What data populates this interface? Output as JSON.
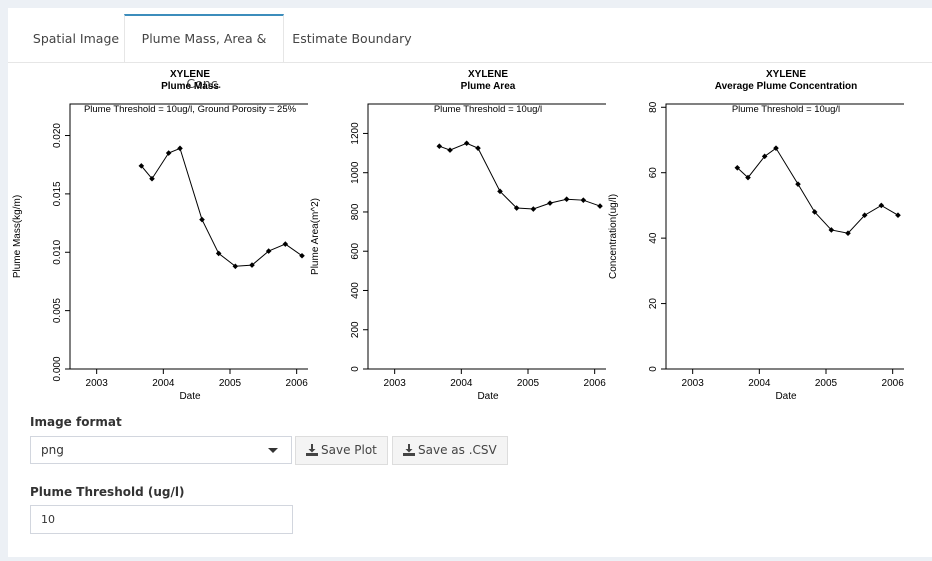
{
  "tabs": [
    {
      "label": "Spatial Image",
      "active": false
    },
    {
      "label": "Plume Mass, Area & Conc.",
      "active": true
    },
    {
      "label": "Estimate Boundary",
      "active": false
    }
  ],
  "accent_color": "#3c8dbc",
  "chart_data": [
    {
      "type": "line",
      "title": "XYLENE",
      "subtitle": "Plume Mass",
      "annotation": "Plume Threshold = 10ug/l, Ground Porosity = 25%",
      "xlabel": "Date",
      "ylabel": "Plume Mass(kg/m)",
      "xticks": [
        "2003",
        "2004",
        "2005",
        "2006"
      ],
      "yticks": [
        "0.000",
        "0.005",
        "0.010",
        "0.015",
        "0.020"
      ],
      "xlim": [
        2002.6,
        2006.2
      ],
      "ylim": [
        0,
        0.0227
      ],
      "x": [
        2003.67,
        2003.83,
        2004.08,
        2004.25,
        2004.58,
        2004.83,
        2005.08,
        2005.33,
        2005.58,
        2005.83,
        2006.08
      ],
      "y": [
        0.0174,
        0.0163,
        0.0185,
        0.0189,
        0.0128,
        0.0099,
        0.0088,
        0.0089,
        0.0101,
        0.0107,
        0.0097
      ]
    },
    {
      "type": "line",
      "title": "XYLENE",
      "subtitle": "Plume Area",
      "annotation": "Plume Threshold = 10ug/l",
      "xlabel": "Date",
      "ylabel": "Plume Area(m^2)",
      "xticks": [
        "2003",
        "2004",
        "2005",
        "2006"
      ],
      "yticks": [
        "0",
        "200",
        "400",
        "600",
        "800",
        "1000",
        "1200"
      ],
      "xlim": [
        2002.6,
        2006.2
      ],
      "ylim": [
        0,
        1350
      ],
      "x": [
        2003.67,
        2003.83,
        2004.08,
        2004.25,
        2004.58,
        2004.83,
        2005.08,
        2005.33,
        2005.58,
        2005.83,
        2006.08
      ],
      "y": [
        1135,
        1115,
        1150,
        1125,
        905,
        820,
        815,
        845,
        865,
        860,
        830
      ]
    },
    {
      "type": "line",
      "title": "XYLENE",
      "subtitle": "Average Plume Concentration",
      "annotation": "Plume Threshold = 10ug/l",
      "xlabel": "Date",
      "ylabel": "Concentration(ug/l)",
      "xticks": [
        "2003",
        "2004",
        "2005",
        "2006"
      ],
      "yticks": [
        "0",
        "20",
        "40",
        "60",
        "80"
      ],
      "xlim": [
        2002.6,
        2006.2
      ],
      "ylim": [
        0,
        81
      ],
      "x": [
        2003.67,
        2003.83,
        2004.08,
        2004.25,
        2004.58,
        2004.83,
        2005.08,
        2005.33,
        2005.58,
        2005.83,
        2006.08
      ],
      "y": [
        61.5,
        58.5,
        65,
        67.5,
        56.5,
        48,
        42.5,
        41.5,
        47,
        50,
        47
      ]
    }
  ],
  "image_format": {
    "label": "Image format",
    "selected": "png"
  },
  "buttons": {
    "save_plot": "Save Plot",
    "save_csv": "Save as .CSV"
  },
  "threshold": {
    "label": "Plume Threshold (ug/l)",
    "value": "10"
  }
}
